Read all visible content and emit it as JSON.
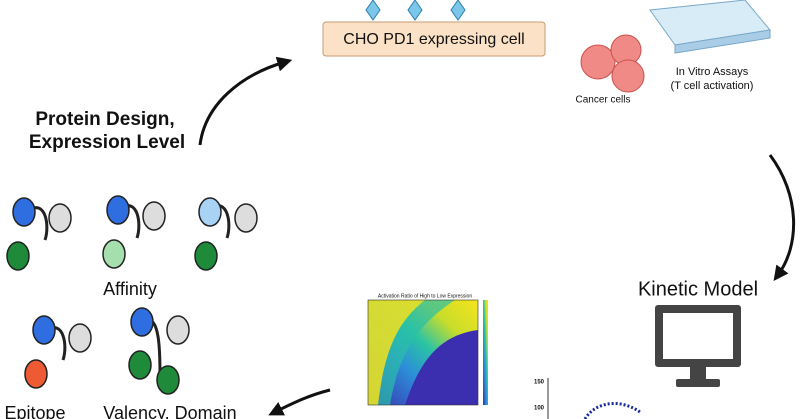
{
  "cell": {
    "label": "CHO PD1 expressing cell"
  },
  "assay": {
    "title": "In Vitro Assays",
    "subtitle": "(T cell activation)"
  },
  "cancer": {
    "label": "Cancer cells"
  },
  "protein_design": {
    "lines": [
      "Protein Design,",
      "Expression Level"
    ]
  },
  "affinity": {
    "label": "Affinity"
  },
  "kinetic_model": {
    "label": "Kinetic Model"
  },
  "bottom_labels": [
    "Epitope",
    "Valency, Domain"
  ],
  "heatmap": {
    "title": "Activation Ratio of High to Low Expression"
  },
  "small_plot": {
    "yticks": [
      "150",
      "100"
    ]
  }
}
